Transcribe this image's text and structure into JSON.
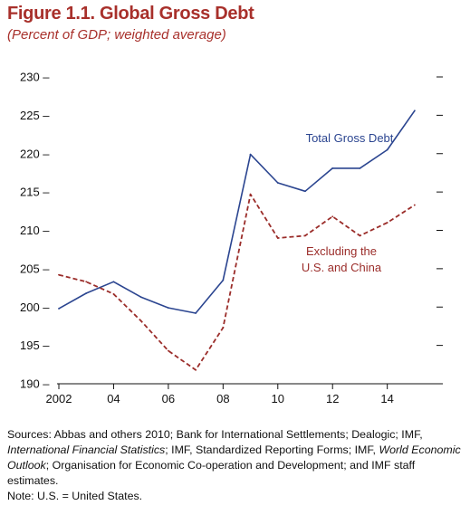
{
  "figure": {
    "title": "Figure 1.1. Global Gross Debt",
    "subtitle": "(Percent of GDP; weighted average)"
  },
  "chart_data": {
    "type": "line",
    "x": [
      2002,
      2003,
      2004,
      2005,
      2006,
      2007,
      2008,
      2009,
      2010,
      2011,
      2012,
      2013,
      2014,
      2015
    ],
    "xlim": [
      2002,
      2015.5
    ],
    "x_ticks": [
      2002,
      2004,
      2006,
      2008,
      2010,
      2012,
      2014
    ],
    "x_tick_labels": [
      "2002",
      "04",
      "06",
      "08",
      "10",
      "12",
      "14"
    ],
    "ylim": [
      190,
      230
    ],
    "y_ticks": [
      190,
      195,
      200,
      205,
      210,
      215,
      220,
      225,
      230
    ],
    "grid": false,
    "series": [
      {
        "name": "Total Gross Debt",
        "style": "solid",
        "color": "#2b4590",
        "values": [
          199.8,
          201.8,
          203.3,
          201.3,
          199.9,
          199.2,
          203.5,
          219.9,
          216.2,
          215.1,
          218.1,
          218.1,
          220.5,
          225.6
        ]
      },
      {
        "name": "Excluding the U.S. and China",
        "name_lines": [
          "Excluding the",
          "U.S. and China"
        ],
        "style": "dashed",
        "color": "#9b2d2a",
        "values": [
          204.2,
          203.3,
          201.7,
          198.2,
          194.3,
          191.8,
          197.3,
          214.7,
          209.0,
          209.3,
          211.8,
          209.3,
          211.0,
          213.3
        ]
      }
    ]
  },
  "notes": {
    "sources_prefix": "Sources: Abbas and others 2010; Bank for International Settlements; Dealogic; IMF, ",
    "sources_ifs": "International Financial Statistics",
    "sources_mid": "; IMF, Standardized Reporting Forms; IMF, ",
    "sources_weo": "World Economic Outlook",
    "sources_suffix": "; Organisation for Economic Co-operation and Development; and IMF staff estimates.",
    "note": "Note: U.S. = United States."
  }
}
